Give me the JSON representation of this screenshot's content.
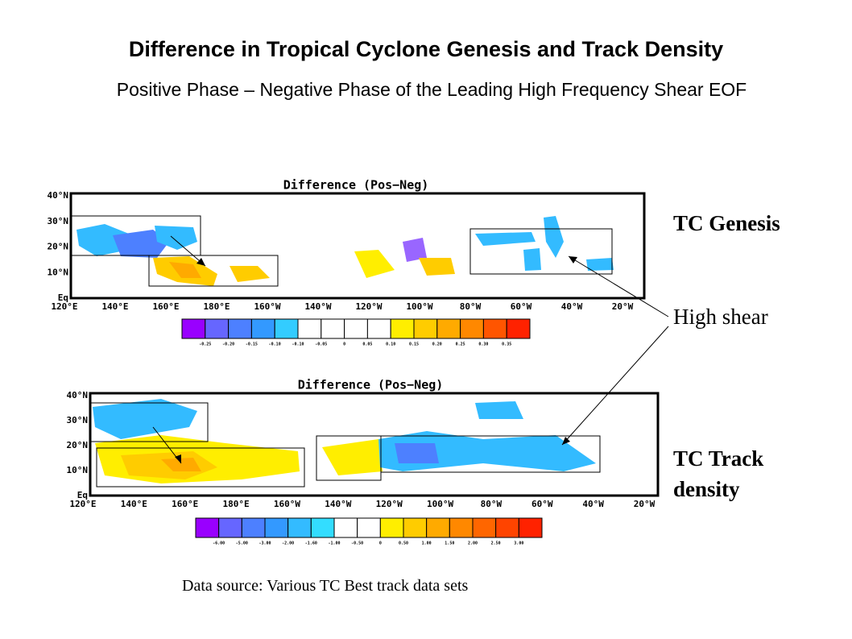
{
  "header": {
    "title": "Difference in Tropical Cyclone Genesis and Track Density",
    "subtitle": "Positive Phase – Negative Phase of the Leading High Frequency Shear EOF"
  },
  "maps": [
    {
      "title": "Difference (Pos−Neg)",
      "lat_labels": [
        "40°N",
        "30°N",
        "20°N",
        "10°N",
        "Eq"
      ],
      "lon_labels": [
        "120°E",
        "140°E",
        "160°E",
        "180°E",
        "160°W",
        "140°W",
        "120°W",
        "100°W",
        "80°W",
        "60°W",
        "40°W",
        "20°W"
      ],
      "colorbar": {
        "colors": [
          "#9900ff",
          "#6666ff",
          "#4d80ff",
          "#3399ff",
          "#33ccff",
          "#ffffff",
          "#ffffff",
          "#ffffff",
          "#ffffff",
          "#ffee00",
          "#ffcc00",
          "#ffaa00",
          "#ff8800",
          "#ff5500",
          "#ff2200"
        ],
        "labels": [
          "-0.25",
          "-0.20",
          "-0.15",
          "-0.10",
          "-0.10",
          "-0.05",
          "0",
          "0.05",
          "0.10",
          "0.15",
          "0.20",
          "0.25",
          "0.30",
          "0.35"
        ]
      }
    },
    {
      "title": "Difference (Pos−Neg)",
      "lat_labels": [
        "40°N",
        "30°N",
        "20°N",
        "10°N",
        "Eq"
      ],
      "lon_labels": [
        "120°E",
        "140°E",
        "160°E",
        "180°E",
        "160°W",
        "140°W",
        "120°W",
        "100°W",
        "80°W",
        "60°W",
        "40°W",
        "20°W"
      ],
      "colorbar": {
        "colors": [
          "#9900ff",
          "#6666ff",
          "#4d80ff",
          "#3399ff",
          "#33bbff",
          "#33ddff",
          "#ffffff",
          "#ffffff",
          "#ffee00",
          "#ffcc00",
          "#ffaa00",
          "#ff8800",
          "#ff6600",
          "#ff4400",
          "#ff2200"
        ],
        "labels": [
          "-6.00",
          "-5.00",
          "-3.00",
          "-2.00",
          "-1.60",
          "-1.00",
          "-0.50",
          "0",
          "0.50",
          "1.00",
          "1.50",
          "2.00",
          "2.50",
          "3.00"
        ]
      }
    }
  ],
  "labels": {
    "genesis": "TC Genesis",
    "high_shear": "High shear",
    "track_density": "TC Track density"
  },
  "footer": {
    "source": "Data source: Various TC Best track data sets"
  }
}
